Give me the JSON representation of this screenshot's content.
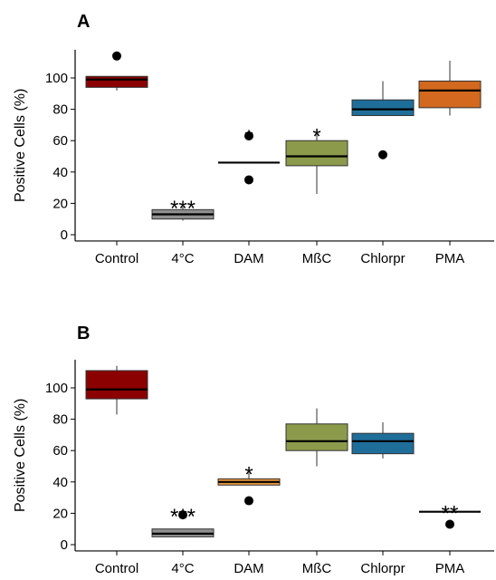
{
  "chart_data": [
    {
      "type": "boxplot",
      "panel_label": "A",
      "ylabel": "Positive Cells (%)",
      "xlabel": "",
      "ylim": [
        -4,
        118
      ],
      "yticks": [
        0,
        20,
        40,
        60,
        80,
        100
      ],
      "categories": [
        "Control",
        "4°C",
        "DAM",
        "MßC",
        "Chlorpr",
        "PMA"
      ],
      "boxes": [
        {
          "category": "Control",
          "color": "#8B0000",
          "whisker_low": 92,
          "q1": 94,
          "median": 99,
          "q3": 101,
          "whisker_high": 101,
          "outliers": [
            114
          ],
          "significance": ""
        },
        {
          "category": "4°C",
          "color": "#909090",
          "whisker_low": 9,
          "q1": 10,
          "median": 13,
          "q3": 16,
          "whisker_high": 18,
          "outliers": [],
          "significance": "***"
        },
        {
          "category": "DAM",
          "color": "#E8963C",
          "whisker_low": 46,
          "q1": 46,
          "median": 46,
          "q3": 46,
          "whisker_high": 46,
          "outliers": [
            63,
            35
          ],
          "significance": "*"
        },
        {
          "category": "MßC",
          "color": "#8C9A4C",
          "whisker_low": 26,
          "q1": 44,
          "median": 50,
          "q3": 60,
          "whisker_high": 64,
          "outliers": [],
          "significance": "*"
        },
        {
          "category": "Chlorpr",
          "color": "#1F6E9A",
          "whisker_low": 76,
          "q1": 76,
          "median": 80,
          "q3": 86,
          "whisker_high": 98,
          "outliers": [
            51
          ],
          "significance": ""
        },
        {
          "category": "PMA",
          "color": "#D2691E",
          "whisker_low": 76,
          "q1": 81,
          "median": 92,
          "q3": 98,
          "whisker_high": 111,
          "outliers": [],
          "significance": ""
        }
      ]
    },
    {
      "type": "boxplot",
      "panel_label": "B",
      "ylabel": "Positive Cells (%)",
      "xlabel": "",
      "ylim": [
        -4,
        118
      ],
      "yticks": [
        0,
        20,
        40,
        60,
        80,
        100
      ],
      "categories": [
        "Control",
        "4°C",
        "DAM",
        "MßC",
        "Chlorpr",
        "PMA"
      ],
      "boxes": [
        {
          "category": "Control",
          "color": "#8B0000",
          "whisker_low": 83,
          "q1": 93,
          "median": 99,
          "q3": 111,
          "whisker_high": 114,
          "outliers": [],
          "significance": ""
        },
        {
          "category": "4°C",
          "color": "#909090",
          "whisker_low": 5,
          "q1": 5,
          "median": 7,
          "q3": 10,
          "whisker_high": 10,
          "outliers": [
            19
          ],
          "significance": "***"
        },
        {
          "category": "DAM",
          "color": "#E8963C",
          "whisker_low": 38,
          "q1": 38,
          "median": 40,
          "q3": 42,
          "whisker_high": 46,
          "outliers": [
            28
          ],
          "significance": "*"
        },
        {
          "category": "MßC",
          "color": "#8C9A4C",
          "whisker_low": 50,
          "q1": 60,
          "median": 66,
          "q3": 77,
          "whisker_high": 87,
          "outliers": [],
          "significance": ""
        },
        {
          "category": "Chlorpr",
          "color": "#1F6E9A",
          "whisker_low": 55,
          "q1": 58,
          "median": 66,
          "q3": 71,
          "whisker_high": 78,
          "outliers": [],
          "significance": ""
        },
        {
          "category": "PMA",
          "color": "#D2691E",
          "whisker_low": 21,
          "q1": 21,
          "median": 21,
          "q3": 21,
          "whisker_high": 21,
          "outliers": [
            13
          ],
          "significance": "**"
        }
      ]
    }
  ]
}
